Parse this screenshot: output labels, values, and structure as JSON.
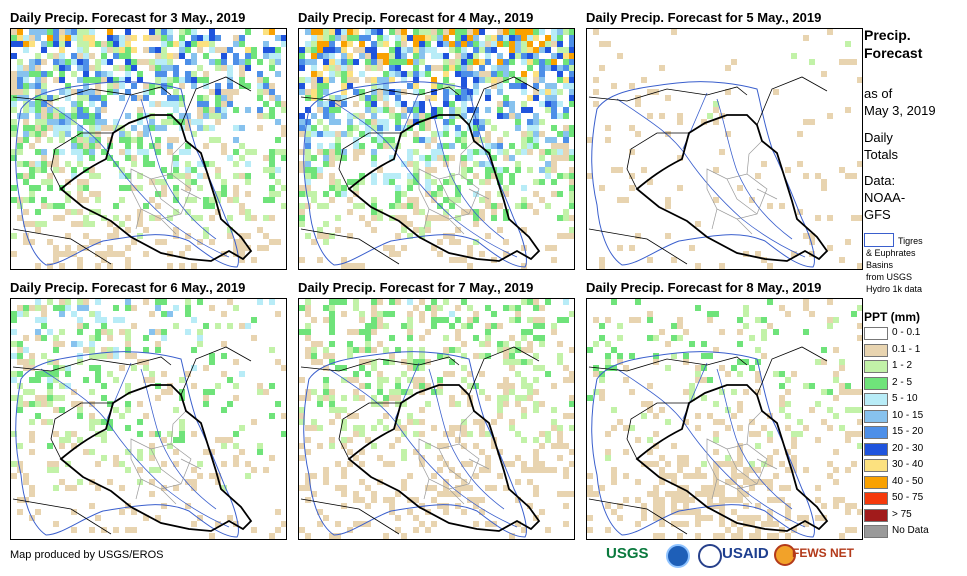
{
  "panels": [
    {
      "title": "Daily Precip. Forecast for 3 May., 2019",
      "wet_level": 5
    },
    {
      "title": "Daily Precip. Forecast for 4 May., 2019",
      "wet_level": 6
    },
    {
      "title": "Daily Precip. Forecast for 5 May., 2019",
      "wet_level": 1
    },
    {
      "title": "Daily Precip. Forecast for 6 May., 2019",
      "wet_level": 3
    },
    {
      "title": "Daily Precip. Forecast for 7 May., 2019",
      "wet_level": 2
    },
    {
      "title": "Daily Precip. Forecast for 8 May., 2019",
      "wet_level": 2
    }
  ],
  "sidebar": {
    "title_line1": "Precip.",
    "title_line2": "Forecast",
    "asof_line1": "as of",
    "asof_line2": "May 3, 2019",
    "totals_line1": "Daily",
    "totals_line2": "Totals",
    "data_line1": "Data:",
    "data_line2": "NOAA-",
    "data_line3": "GFS",
    "basin_line1": "Tigres",
    "basin_line2": "& Euphrates",
    "basin_line3": "Basins",
    "basin_line4": "from USGS",
    "basin_line5": "Hydro 1k data",
    "legend_title": "PPT (mm)",
    "legend": [
      {
        "label": "0 - 0.1",
        "color": "#ffffff"
      },
      {
        "label": "0.1 - 1",
        "color": "#e8d4b0"
      },
      {
        "label": "1 - 2",
        "color": "#c2f2a8"
      },
      {
        "label": "2 - 5",
        "color": "#6fe37a"
      },
      {
        "label": "5 - 10",
        "color": "#b8ecf7"
      },
      {
        "label": "10 - 15",
        "color": "#87c2ee"
      },
      {
        "label": "15 - 20",
        "color": "#4d8fe8"
      },
      {
        "label": "20 - 30",
        "color": "#1f54dd"
      },
      {
        "label": "30 - 40",
        "color": "#fce17f"
      },
      {
        "label": "40 - 50",
        "color": "#f9a100"
      },
      {
        "label": "50 - 75",
        "color": "#f53a0c"
      },
      {
        "label": "> 75",
        "color": "#a11b1b"
      },
      {
        "label": "No Data",
        "color": "#9a9a9a"
      }
    ]
  },
  "footer": {
    "credit": "Map produced by USGS/EROS",
    "logo_usgs": "USGS",
    "logo_usaid": "USAID",
    "logo_fewsnet": "FEWS NET"
  }
}
